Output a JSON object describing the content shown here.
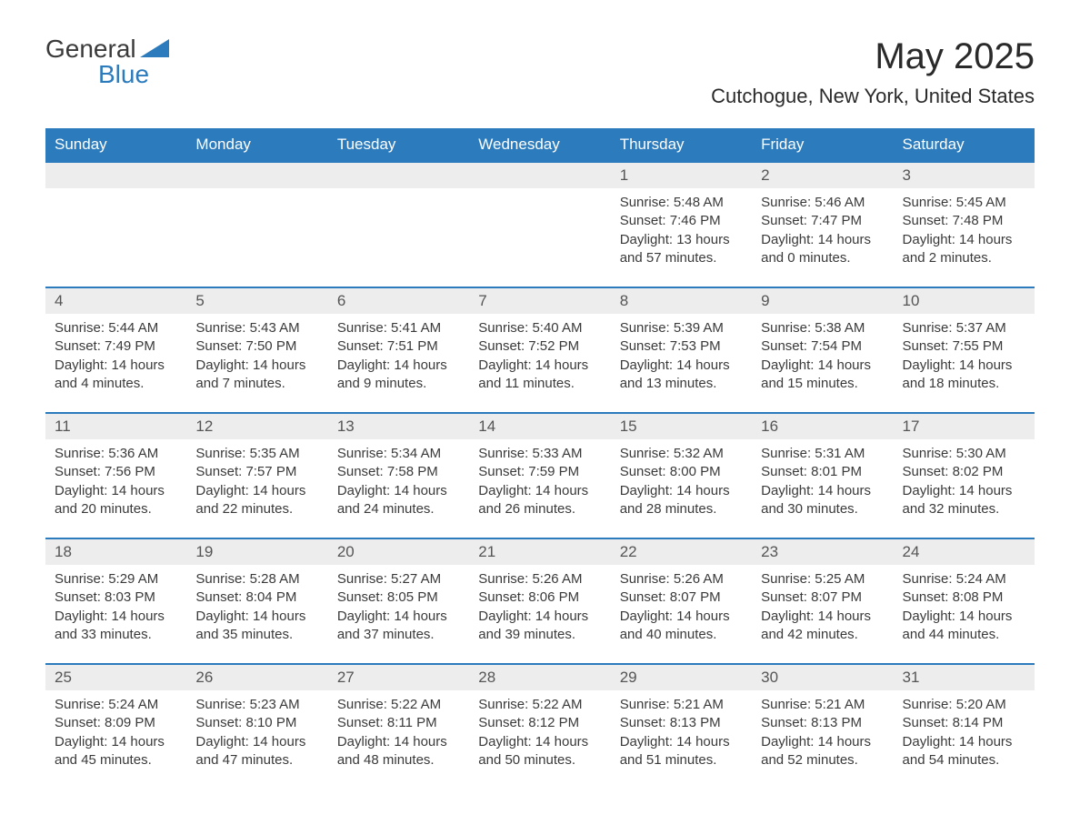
{
  "logo": {
    "text1": "General",
    "text2": "Blue"
  },
  "title": "May 2025",
  "location": "Cutchogue, New York, United States",
  "colors": {
    "header_bg": "#2b7bbd",
    "header_text": "#ffffff",
    "daynum_bg": "#ededed",
    "border": "#2b7bbd",
    "body_text": "#3a3a3a"
  },
  "weekdays": [
    "Sunday",
    "Monday",
    "Tuesday",
    "Wednesday",
    "Thursday",
    "Friday",
    "Saturday"
  ],
  "weeks": [
    [
      {
        "blank": true
      },
      {
        "blank": true
      },
      {
        "blank": true
      },
      {
        "blank": true
      },
      {
        "day": "1",
        "sunrise": "Sunrise: 5:48 AM",
        "sunset": "Sunset: 7:46 PM",
        "daylight": "Daylight: 13 hours and 57 minutes."
      },
      {
        "day": "2",
        "sunrise": "Sunrise: 5:46 AM",
        "sunset": "Sunset: 7:47 PM",
        "daylight": "Daylight: 14 hours and 0 minutes."
      },
      {
        "day": "3",
        "sunrise": "Sunrise: 5:45 AM",
        "sunset": "Sunset: 7:48 PM",
        "daylight": "Daylight: 14 hours and 2 minutes."
      }
    ],
    [
      {
        "day": "4",
        "sunrise": "Sunrise: 5:44 AM",
        "sunset": "Sunset: 7:49 PM",
        "daylight": "Daylight: 14 hours and 4 minutes."
      },
      {
        "day": "5",
        "sunrise": "Sunrise: 5:43 AM",
        "sunset": "Sunset: 7:50 PM",
        "daylight": "Daylight: 14 hours and 7 minutes."
      },
      {
        "day": "6",
        "sunrise": "Sunrise: 5:41 AM",
        "sunset": "Sunset: 7:51 PM",
        "daylight": "Daylight: 14 hours and 9 minutes."
      },
      {
        "day": "7",
        "sunrise": "Sunrise: 5:40 AM",
        "sunset": "Sunset: 7:52 PM",
        "daylight": "Daylight: 14 hours and 11 minutes."
      },
      {
        "day": "8",
        "sunrise": "Sunrise: 5:39 AM",
        "sunset": "Sunset: 7:53 PM",
        "daylight": "Daylight: 14 hours and 13 minutes."
      },
      {
        "day": "9",
        "sunrise": "Sunrise: 5:38 AM",
        "sunset": "Sunset: 7:54 PM",
        "daylight": "Daylight: 14 hours and 15 minutes."
      },
      {
        "day": "10",
        "sunrise": "Sunrise: 5:37 AM",
        "sunset": "Sunset: 7:55 PM",
        "daylight": "Daylight: 14 hours and 18 minutes."
      }
    ],
    [
      {
        "day": "11",
        "sunrise": "Sunrise: 5:36 AM",
        "sunset": "Sunset: 7:56 PM",
        "daylight": "Daylight: 14 hours and 20 minutes."
      },
      {
        "day": "12",
        "sunrise": "Sunrise: 5:35 AM",
        "sunset": "Sunset: 7:57 PM",
        "daylight": "Daylight: 14 hours and 22 minutes."
      },
      {
        "day": "13",
        "sunrise": "Sunrise: 5:34 AM",
        "sunset": "Sunset: 7:58 PM",
        "daylight": "Daylight: 14 hours and 24 minutes."
      },
      {
        "day": "14",
        "sunrise": "Sunrise: 5:33 AM",
        "sunset": "Sunset: 7:59 PM",
        "daylight": "Daylight: 14 hours and 26 minutes."
      },
      {
        "day": "15",
        "sunrise": "Sunrise: 5:32 AM",
        "sunset": "Sunset: 8:00 PM",
        "daylight": "Daylight: 14 hours and 28 minutes."
      },
      {
        "day": "16",
        "sunrise": "Sunrise: 5:31 AM",
        "sunset": "Sunset: 8:01 PM",
        "daylight": "Daylight: 14 hours and 30 minutes."
      },
      {
        "day": "17",
        "sunrise": "Sunrise: 5:30 AM",
        "sunset": "Sunset: 8:02 PM",
        "daylight": "Daylight: 14 hours and 32 minutes."
      }
    ],
    [
      {
        "day": "18",
        "sunrise": "Sunrise: 5:29 AM",
        "sunset": "Sunset: 8:03 PM",
        "daylight": "Daylight: 14 hours and 33 minutes."
      },
      {
        "day": "19",
        "sunrise": "Sunrise: 5:28 AM",
        "sunset": "Sunset: 8:04 PM",
        "daylight": "Daylight: 14 hours and 35 minutes."
      },
      {
        "day": "20",
        "sunrise": "Sunrise: 5:27 AM",
        "sunset": "Sunset: 8:05 PM",
        "daylight": "Daylight: 14 hours and 37 minutes."
      },
      {
        "day": "21",
        "sunrise": "Sunrise: 5:26 AM",
        "sunset": "Sunset: 8:06 PM",
        "daylight": "Daylight: 14 hours and 39 minutes."
      },
      {
        "day": "22",
        "sunrise": "Sunrise: 5:26 AM",
        "sunset": "Sunset: 8:07 PM",
        "daylight": "Daylight: 14 hours and 40 minutes."
      },
      {
        "day": "23",
        "sunrise": "Sunrise: 5:25 AM",
        "sunset": "Sunset: 8:07 PM",
        "daylight": "Daylight: 14 hours and 42 minutes."
      },
      {
        "day": "24",
        "sunrise": "Sunrise: 5:24 AM",
        "sunset": "Sunset: 8:08 PM",
        "daylight": "Daylight: 14 hours and 44 minutes."
      }
    ],
    [
      {
        "day": "25",
        "sunrise": "Sunrise: 5:24 AM",
        "sunset": "Sunset: 8:09 PM",
        "daylight": "Daylight: 14 hours and 45 minutes."
      },
      {
        "day": "26",
        "sunrise": "Sunrise: 5:23 AM",
        "sunset": "Sunset: 8:10 PM",
        "daylight": "Daylight: 14 hours and 47 minutes."
      },
      {
        "day": "27",
        "sunrise": "Sunrise: 5:22 AM",
        "sunset": "Sunset: 8:11 PM",
        "daylight": "Daylight: 14 hours and 48 minutes."
      },
      {
        "day": "28",
        "sunrise": "Sunrise: 5:22 AM",
        "sunset": "Sunset: 8:12 PM",
        "daylight": "Daylight: 14 hours and 50 minutes."
      },
      {
        "day": "29",
        "sunrise": "Sunrise: 5:21 AM",
        "sunset": "Sunset: 8:13 PM",
        "daylight": "Daylight: 14 hours and 51 minutes."
      },
      {
        "day": "30",
        "sunrise": "Sunrise: 5:21 AM",
        "sunset": "Sunset: 8:13 PM",
        "daylight": "Daylight: 14 hours and 52 minutes."
      },
      {
        "day": "31",
        "sunrise": "Sunrise: 5:20 AM",
        "sunset": "Sunset: 8:14 PM",
        "daylight": "Daylight: 14 hours and 54 minutes."
      }
    ]
  ]
}
